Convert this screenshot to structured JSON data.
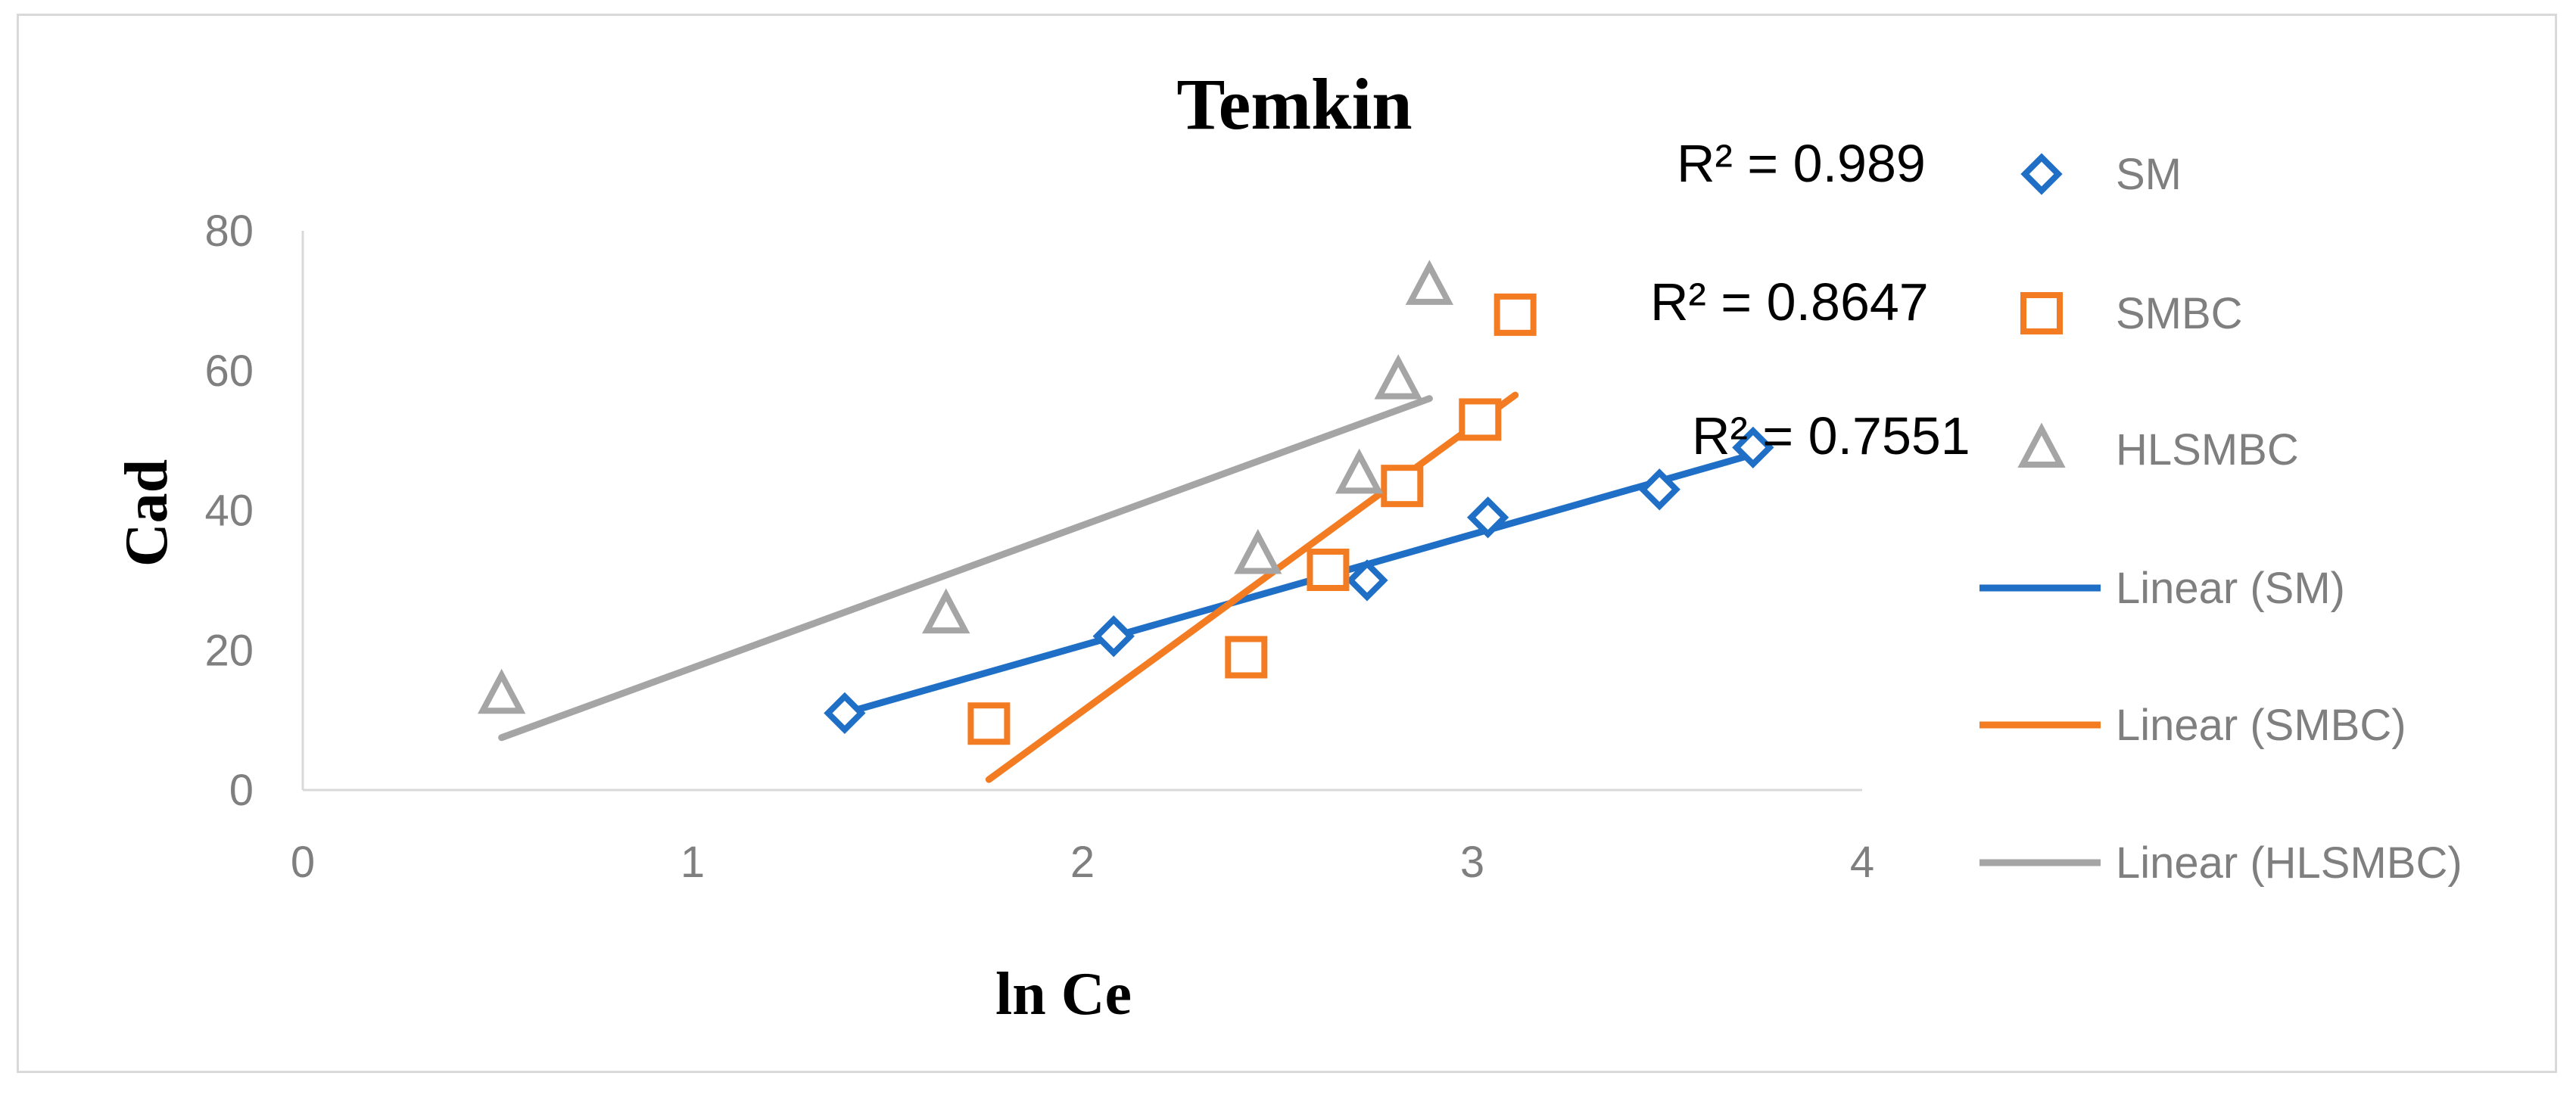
{
  "chart_data": {
    "type": "scatter",
    "title": "Temkin",
    "xlabel": "ln Ce",
    "ylabel": "Cad",
    "xlim": [
      0,
      4
    ],
    "ylim": [
      0,
      80
    ],
    "xticks": [
      "0",
      "1",
      "2",
      "3",
      "4"
    ],
    "yticks": [
      "0",
      "20",
      "40",
      "60",
      "80"
    ],
    "grid": false,
    "legend_position": "right",
    "series": [
      {
        "name": "SM",
        "marker": "diamond",
        "color": "#1f6fc6",
        "x": [
          1.39,
          2.08,
          2.73,
          3.04,
          3.48,
          3.72
        ],
        "y": [
          11,
          22,
          30,
          39,
          43,
          49
        ],
        "trendline": {
          "name": "Linear (SM)",
          "x": [
            1.39,
            3.72
          ],
          "y": [
            11,
            48
          ],
          "r2": "R² = 0.989"
        }
      },
      {
        "name": "SMBC",
        "marker": "square",
        "color": "#f37b21",
        "x": [
          1.76,
          2.42,
          2.63,
          2.82,
          3.02,
          3.11
        ],
        "y": [
          9.5,
          19,
          31.5,
          43.5,
          53,
          68
        ],
        "trendline": {
          "name": "Linear (SMBC)",
          "x": [
            1.76,
            3.11
          ],
          "y": [
            1.5,
            56.5
          ],
          "r2": "R² = 0.8647"
        }
      },
      {
        "name": "HLSMBC",
        "marker": "triangle",
        "color": "#a5a5a5",
        "x": [
          0.51,
          1.65,
          2.45,
          2.71,
          2.81,
          2.89
        ],
        "y": [
          13.5,
          25,
          33.5,
          45,
          58.5,
          72
        ],
        "trendline": {
          "name": "Linear (HLSMBC)",
          "x": [
            0.51,
            2.89
          ],
          "y": [
            7.5,
            56
          ],
          "r2": "R² = 0.7551"
        }
      }
    ]
  }
}
